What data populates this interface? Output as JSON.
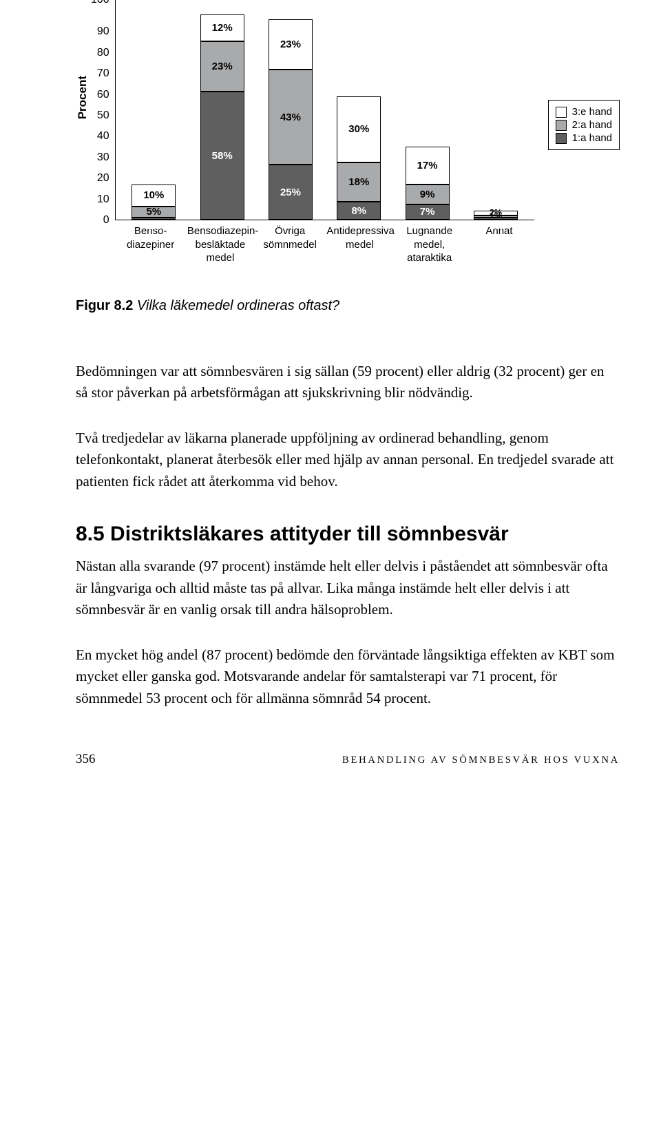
{
  "chart": {
    "type": "stacked-bar",
    "ylabel": "Procent",
    "ylim_max": 100,
    "ytick_step": 10,
    "yticks": [
      "100",
      "90",
      "80",
      "70",
      "60",
      "50",
      "40",
      "30",
      "20",
      "10",
      "0"
    ],
    "colors": {
      "c1": "#5f5f60",
      "c2": "#a9aaac",
      "c3": "#ffffff"
    },
    "legend": [
      {
        "key": "c3",
        "label": "3:e hand"
      },
      {
        "key": "c2",
        "label": "2:a hand"
      },
      {
        "key": "c1",
        "label": "1:a hand"
      }
    ],
    "categories": [
      {
        "label": "Benso-\ndiazepiner",
        "segments": [
          {
            "series": "c1",
            "value": 1,
            "text": "1%",
            "pos": "below"
          },
          {
            "series": "c2",
            "value": 5,
            "text": "5%",
            "pos": "in"
          },
          {
            "series": "c3",
            "value": 10,
            "text": "10%",
            "pos": "in"
          }
        ]
      },
      {
        "label": "Bensodiazepin-\nbesläktade\nmedel",
        "segments": [
          {
            "series": "c1",
            "value": 58,
            "text": "58%",
            "pos": "in"
          },
          {
            "series": "c2",
            "value": 23,
            "text": "23%",
            "pos": "in"
          },
          {
            "series": "c3",
            "value": 12,
            "text": "12%",
            "pos": "in"
          }
        ]
      },
      {
        "label": "Övriga\nsömnmedel",
        "segments": [
          {
            "series": "c1",
            "value": 25,
            "text": "25%",
            "pos": "in"
          },
          {
            "series": "c2",
            "value": 43,
            "text": "43%",
            "pos": "in"
          },
          {
            "series": "c3",
            "value": 23,
            "text": "23%",
            "pos": "in"
          }
        ]
      },
      {
        "label": "Antidepressiva\nmedel",
        "segments": [
          {
            "series": "c1",
            "value": 8,
            "text": "8%",
            "pos": "in"
          },
          {
            "series": "c2",
            "value": 18,
            "text": "18%",
            "pos": "in"
          },
          {
            "series": "c3",
            "value": 30,
            "text": "30%",
            "pos": "in"
          }
        ]
      },
      {
        "label": "Lugnande\nmedel,\nataraktika",
        "segments": [
          {
            "series": "c1",
            "value": 7,
            "text": "7%",
            "pos": "in"
          },
          {
            "series": "c2",
            "value": 9,
            "text": "9%",
            "pos": "in"
          },
          {
            "series": "c3",
            "value": 17,
            "text": "17%",
            "pos": "in"
          }
        ]
      },
      {
        "label": "Annat",
        "segments": [
          {
            "series": "c1",
            "value": 1,
            "text": "1%",
            "pos": "below"
          },
          {
            "series": "c2",
            "value": 1,
            "text": "1%",
            "pos": "in",
            "tiny": true
          },
          {
            "series": "c3",
            "value": 2,
            "text": "2%",
            "pos": "in",
            "tiny": true
          }
        ]
      }
    ]
  },
  "caption_number": "Figur 8.2",
  "caption_text": "Vilka läkemedel ordineras oftast?",
  "p1": "Bedömningen var att sömnbesvären i sig sällan (59 procent) eller aldrig (32 procent) ger en så stor påverkan på arbetsförmågan att sjukskrivning blir nödvändig.",
  "p2": "Två tredjedelar av läkarna planerade uppföljning av ordinerad behandling, genom telefonkontakt, planerat återbesök eller med hjälp av annan personal. En tredjedel svarade att patienten fick rådet att återkomma vid behov.",
  "section_heading": "8.5 Distriktsläkares attityder till sömnbesvär",
  "p3": "Nästan alla svarande (97 procent) instämde helt eller delvis i påståendet att sömnbesvär ofta är långvariga och alltid måste tas på allvar. Lika många instämde helt eller delvis i att sömnbesvär är en vanlig orsak till andra hälsoproblem.",
  "p4": "En mycket hög andel (87 procent) bedömde den förväntade långsiktiga effekten av KBT som mycket eller ganska god. Motsvarande andelar för samtalsterapi var 71 procent, för sömnmedel 53 procent och för allmänna sömnråd 54 procent.",
  "page_no": "356",
  "running_head": "BEHANDLING AV SÖMNBESVÄR HOS VUXNA"
}
